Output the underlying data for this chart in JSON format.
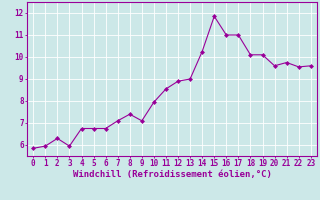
{
  "x": [
    0,
    1,
    2,
    3,
    4,
    5,
    6,
    7,
    8,
    9,
    10,
    11,
    12,
    13,
    14,
    15,
    16,
    17,
    18,
    19,
    20,
    21,
    22,
    23
  ],
  "y": [
    5.85,
    5.95,
    6.3,
    5.95,
    6.75,
    6.75,
    6.75,
    7.1,
    7.4,
    7.1,
    7.95,
    8.55,
    8.9,
    9.0,
    10.25,
    11.85,
    11.0,
    11.0,
    10.1,
    10.1,
    9.6,
    9.75,
    9.55,
    9.6
  ],
  "line_color": "#990099",
  "marker": "D",
  "marker_size": 2.0,
  "bg_color": "#cce8e8",
  "grid_color": "#ffffff",
  "xlabel": "Windchill (Refroidissement éolien,°C)",
  "xlim": [
    -0.5,
    23.5
  ],
  "ylim": [
    5.5,
    12.5
  ],
  "yticks": [
    6,
    7,
    8,
    9,
    10,
    11,
    12
  ],
  "xticks": [
    0,
    1,
    2,
    3,
    4,
    5,
    6,
    7,
    8,
    9,
    10,
    11,
    12,
    13,
    14,
    15,
    16,
    17,
    18,
    19,
    20,
    21,
    22,
    23
  ],
  "tick_fontsize": 5.5,
  "xlabel_fontsize": 6.5,
  "label_color": "#990099",
  "axis_color": "#990099",
  "linewidth": 0.8
}
